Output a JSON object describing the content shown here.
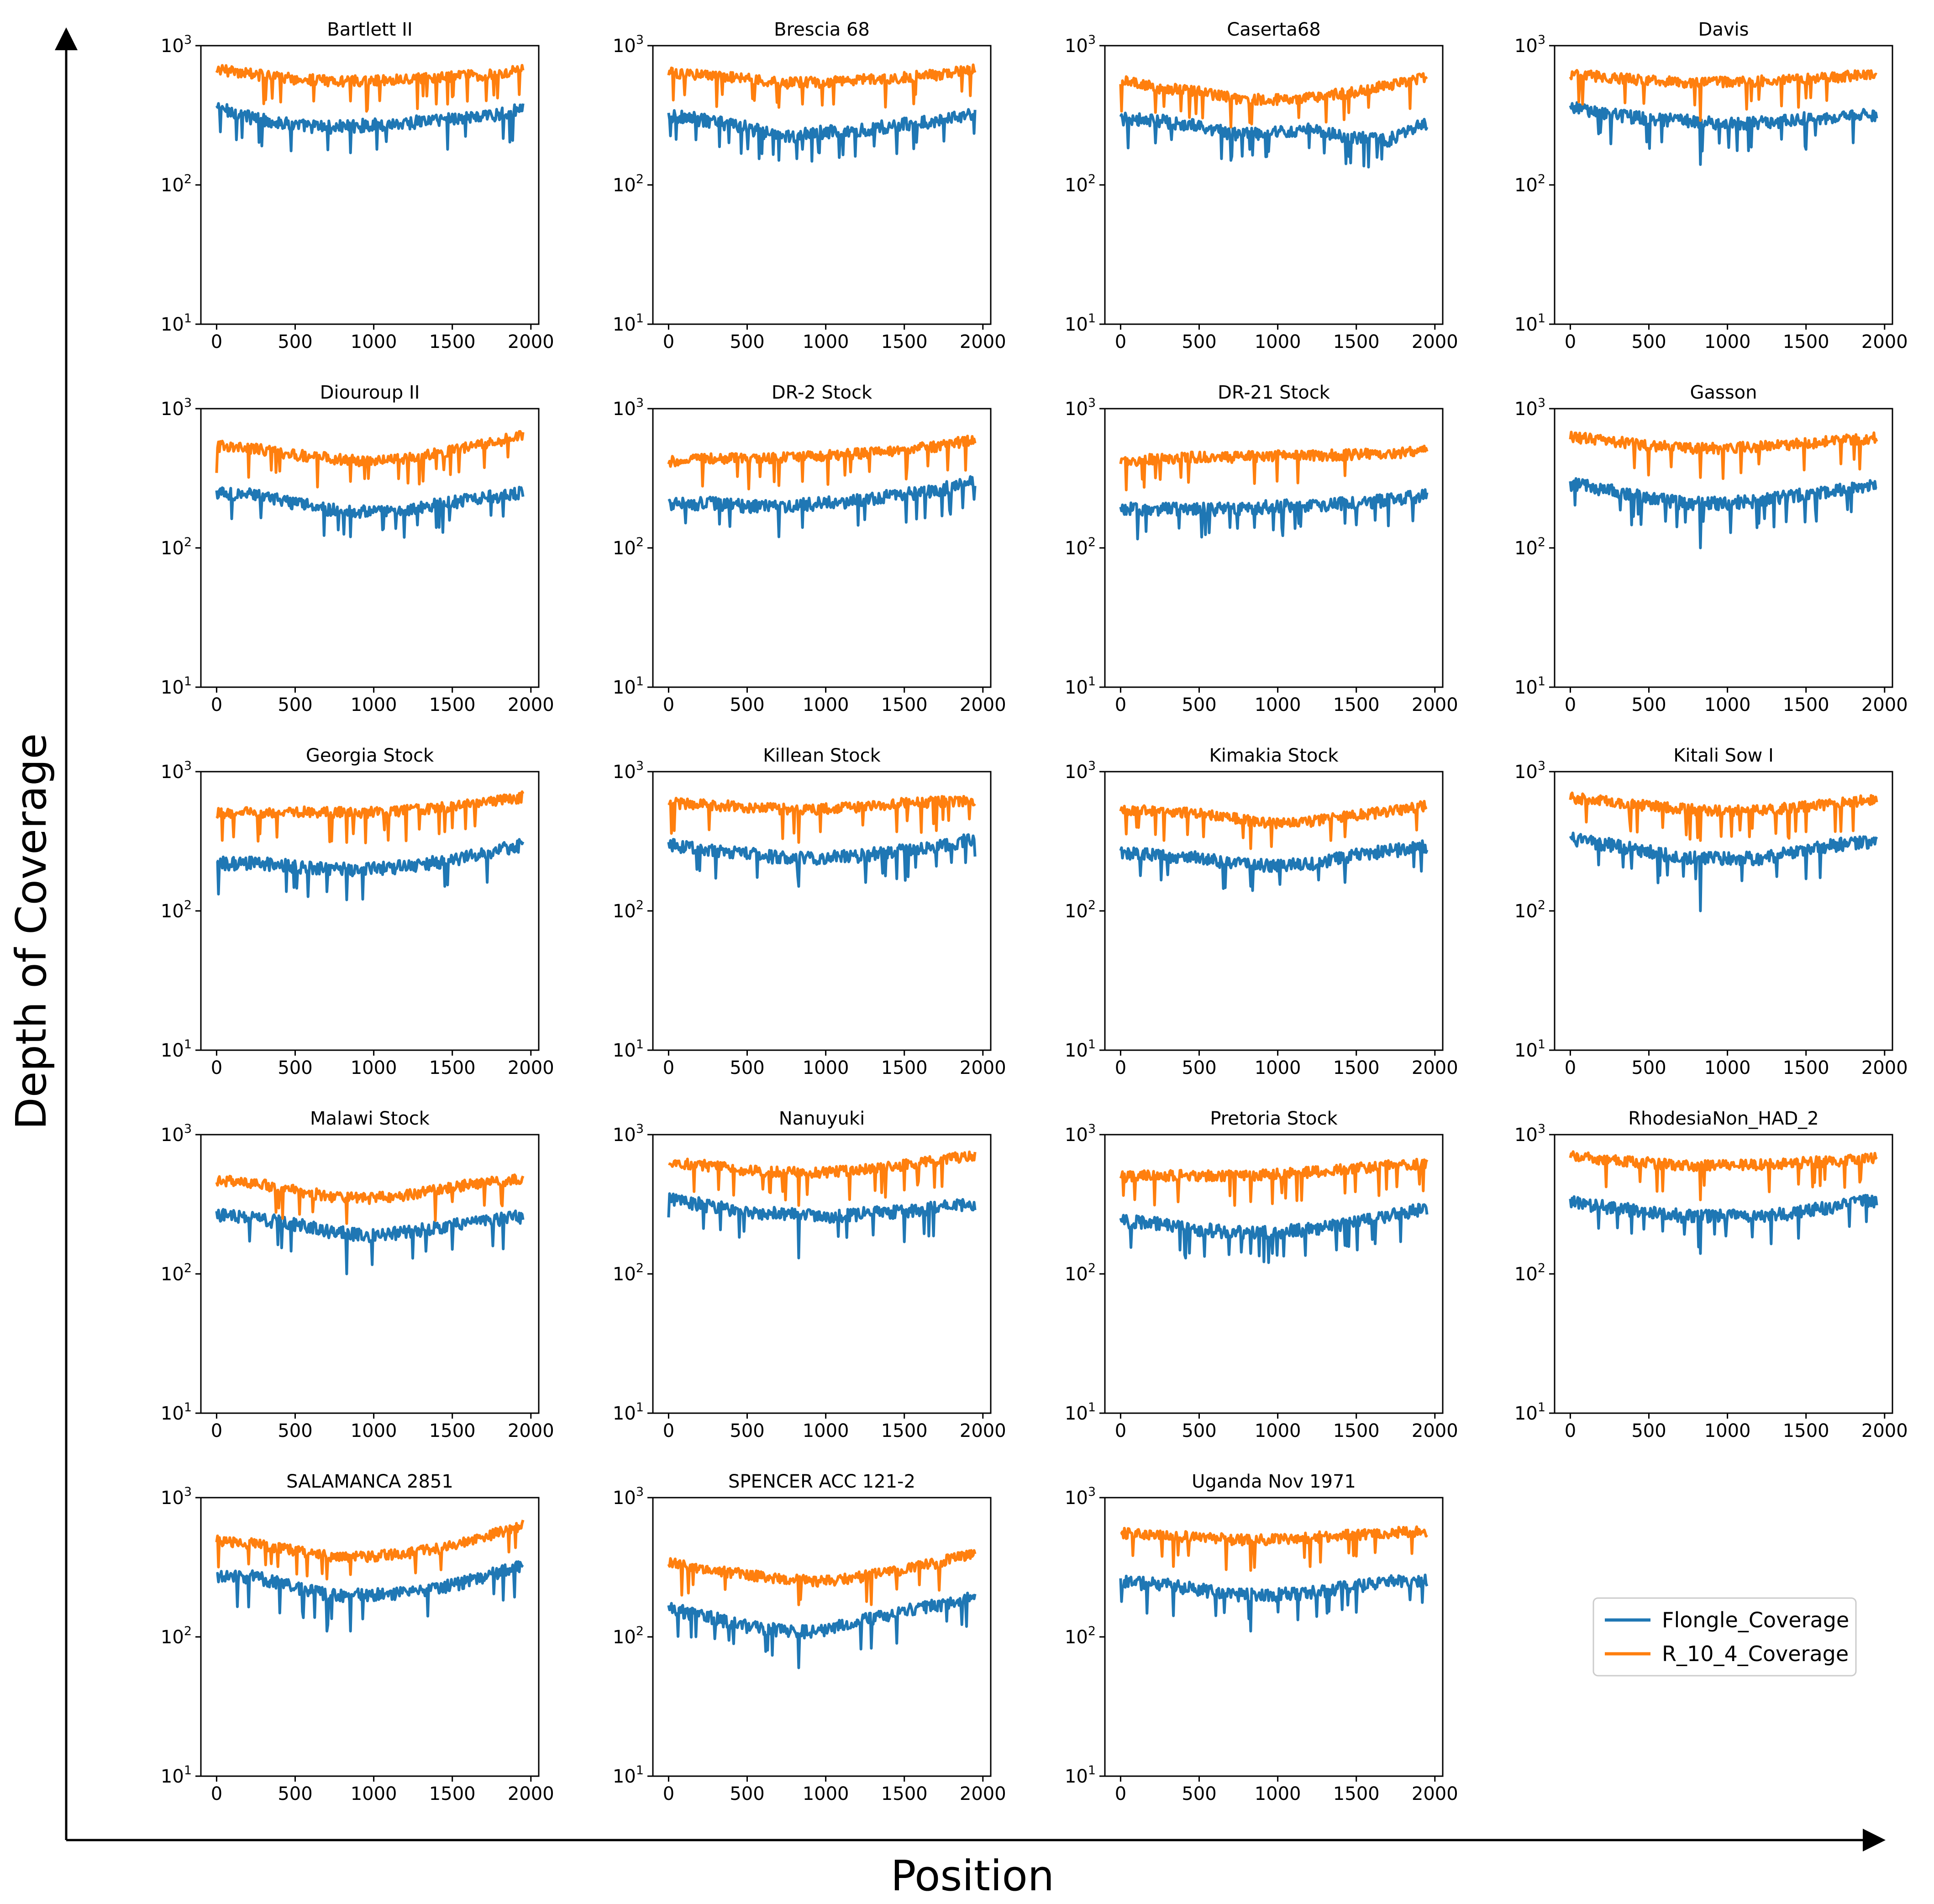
{
  "figure": {
    "ylabel": "Depth of Coverage",
    "xlabel": "Position"
  },
  "legend": {
    "placement": "bottom-right",
    "entries": [
      {
        "label": "Flongle_Coverage",
        "color": "#1f77b4"
      },
      {
        "label": "R_10_4_Coverage",
        "color": "#ff7f0e"
      }
    ]
  },
  "chart_data": {
    "type": "line",
    "yscale": "log",
    "ylim": [
      10,
      1000
    ],
    "xlim": [
      -100,
      2050
    ],
    "xticks": [
      0,
      500,
      1000,
      1500,
      2000
    ],
    "yticks": [
      10,
      100,
      1000
    ],
    "ytick_base": "10",
    "ytick_exponents": [
      "1",
      "2",
      "3"
    ],
    "x_range": [
      0,
      1950
    ],
    "series_names": [
      "Flongle_Coverage",
      "R_10_4_Coverage"
    ],
    "note": "Each panel: Flongle and R_10_4 coverage profiles; values are approximate mean-level anchors (every 250 positions) with coverage dips noted.",
    "panels": [
      {
        "title": "Bartlett II",
        "flongle": [
          360,
          300,
          270,
          260,
          270,
          280,
          300,
          310,
          350
        ],
        "r104": [
          680,
          620,
          580,
          560,
          560,
          580,
          600,
          620,
          680
        ],
        "dips": [
          [
            850,
            170,
            400
          ],
          [
            1470,
            180,
            380
          ]
        ]
      },
      {
        "title": "Brescia 68",
        "flongle": [
          320,
          290,
          260,
          220,
          240,
          250,
          270,
          290,
          320
        ],
        "r104": [
          650,
          610,
          580,
          540,
          550,
          570,
          590,
          620,
          680
        ],
        "dips": [
          [
            700,
            150,
            360
          ],
          [
            850,
            180,
            380
          ]
        ]
      },
      {
        "title": "Caserta68",
        "flongle": [
          300,
          290,
          270,
          230,
          240,
          250,
          220,
          210,
          280
        ],
        "r104": [
          560,
          500,
          470,
          420,
          410,
          430,
          460,
          520,
          590
        ],
        "dips": [
          [
            700,
            150,
            260
          ],
          [
            820,
            180,
            280
          ],
          [
            1450,
            160,
            330
          ]
        ]
      },
      {
        "title": "Davis",
        "flongle": [
          360,
          320,
          300,
          290,
          280,
          280,
          300,
          310,
          320
        ],
        "r104": [
          630,
          590,
          560,
          550,
          550,
          560,
          580,
          600,
          620
        ],
        "dips": [
          [
            830,
            140,
            290
          ],
          [
            1500,
            180,
            420
          ]
        ]
      },
      {
        "title": "Diouroup II",
        "flongle": [
          250,
          240,
          210,
          190,
          180,
          190,
          210,
          230,
          250
        ],
        "r104": [
          540,
          520,
          470,
          440,
          420,
          440,
          490,
          560,
          640
        ],
        "dips": [
          [
            850,
            120,
            300
          ],
          [
            1400,
            140,
            370
          ]
        ]
      },
      {
        "title": "DR-2 Stock",
        "flongle": [
          210,
          210,
          200,
          200,
          210,
          220,
          240,
          260,
          300
        ],
        "r104": [
          420,
          440,
          440,
          450,
          460,
          480,
          500,
          540,
          600
        ],
        "dips": [
          [
            700,
            120,
            280
          ],
          [
            850,
            140,
            300
          ]
        ]
      },
      {
        "title": "DR-21 Stock",
        "flongle": [
          190,
          190,
          190,
          190,
          200,
          200,
          210,
          220,
          240
        ],
        "r104": [
          420,
          440,
          450,
          450,
          460,
          460,
          470,
          480,
          500
        ],
        "dips": [
          [
            850,
            140,
            290
          ],
          [
            1430,
            150,
            330
          ]
        ]
      },
      {
        "title": "Gasson",
        "flongle": [
          290,
          260,
          230,
          210,
          210,
          220,
          240,
          260,
          280
        ],
        "r104": [
          630,
          590,
          550,
          520,
          520,
          540,
          560,
          590,
          620
        ],
        "dips": [
          [
            830,
            100,
            320
          ],
          [
            1200,
            150,
            400
          ]
        ]
      },
      {
        "title": "Georgia Stock",
        "flongle": [
          220,
          220,
          210,
          200,
          200,
          210,
          230,
          260,
          300
        ],
        "r104": [
          500,
          510,
          520,
          510,
          510,
          530,
          560,
          600,
          660
        ],
        "dips": [
          [
            830,
            120,
            310
          ],
          [
            1450,
            150,
            370
          ]
        ]
      },
      {
        "title": "Killean Stock",
        "flongle": [
          300,
          280,
          260,
          240,
          240,
          250,
          270,
          290,
          330
        ],
        "r104": [
          600,
          580,
          560,
          540,
          540,
          560,
          590,
          610,
          620
        ],
        "dips": [
          [
            830,
            150,
            310
          ],
          [
            1450,
            170,
            370
          ]
        ]
      },
      {
        "title": "Kimakia Stock",
        "flongle": [
          260,
          250,
          240,
          220,
          210,
          220,
          250,
          270,
          290
        ],
        "r104": [
          540,
          520,
          500,
          460,
          430,
          440,
          480,
          520,
          570
        ],
        "dips": [
          [
            830,
            150,
            280
          ],
          [
            1430,
            160,
            340
          ]
        ]
      },
      {
        "title": "Kitali Sow I",
        "flongle": [
          330,
          300,
          270,
          240,
          240,
          240,
          270,
          300,
          320
        ],
        "r104": [
          650,
          610,
          570,
          540,
          520,
          530,
          560,
          590,
          640
        ],
        "dips": [
          [
            830,
            100,
            320
          ],
          [
            1500,
            170,
            370
          ]
        ]
      },
      {
        "title": "Malawi Stock",
        "flongle": [
          270,
          250,
          230,
          200,
          190,
          200,
          220,
          240,
          260
        ],
        "r104": [
          470,
          450,
          400,
          360,
          350,
          370,
          410,
          460,
          480
        ],
        "dips": [
          [
            830,
            100,
            230
          ],
          [
            1500,
            150,
            330
          ]
        ]
      },
      {
        "title": "Nanuyuki",
        "flongle": [
          350,
          310,
          280,
          270,
          260,
          270,
          280,
          300,
          320
        ],
        "r104": [
          640,
          600,
          560,
          540,
          540,
          560,
          600,
          650,
          720
        ],
        "dips": [
          [
            830,
            130,
            310
          ],
          [
            1500,
            170,
            400
          ]
        ]
      },
      {
        "title": "Pretoria Stock",
        "flongle": [
          240,
          230,
          210,
          200,
          200,
          210,
          230,
          260,
          300
        ],
        "r104": [
          500,
          510,
          510,
          510,
          520,
          540,
          570,
          600,
          620
        ],
        "dips": [
          [
            830,
            140,
            330
          ],
          [
            1430,
            160,
            380
          ]
        ]
      },
      {
        "title": "RhodesiaNon_HAD_2",
        "flongle": [
          330,
          300,
          280,
          260,
          260,
          260,
          280,
          310,
          340
        ],
        "r104": [
          700,
          660,
          630,
          600,
          600,
          610,
          630,
          650,
          680
        ],
        "dips": [
          [
            830,
            140,
            340
          ],
          [
            1450,
            180,
            440
          ]
        ]
      },
      {
        "title": "SALAMANCA 2851",
        "flongle": [
          270,
          270,
          230,
          200,
          200,
          210,
          230,
          270,
          330
        ],
        "r104": [
          490,
          470,
          420,
          380,
          380,
          400,
          440,
          520,
          640
        ],
        "dips": [
          [
            700,
            110,
            260
          ],
          [
            850,
            110,
            280
          ]
        ]
      },
      {
        "title": "SPENCER ACC 121-2",
        "flongle": [
          160,
          140,
          120,
          110,
          110,
          130,
          150,
          170,
          190
        ],
        "r104": [
          340,
          310,
          280,
          260,
          250,
          270,
          300,
          340,
          400
        ],
        "dips": [
          [
            830,
            60,
            170
          ],
          [
            1450,
            90,
            220
          ]
        ]
      },
      {
        "title": "Uganda Nov 1971",
        "flongle": [
          250,
          240,
          220,
          200,
          200,
          210,
          230,
          250,
          260
        ],
        "r104": [
          560,
          540,
          520,
          500,
          500,
          520,
          540,
          560,
          580
        ],
        "dips": [
          [
            830,
            110,
            300
          ],
          [
            1500,
            150,
            380
          ]
        ]
      }
    ]
  }
}
